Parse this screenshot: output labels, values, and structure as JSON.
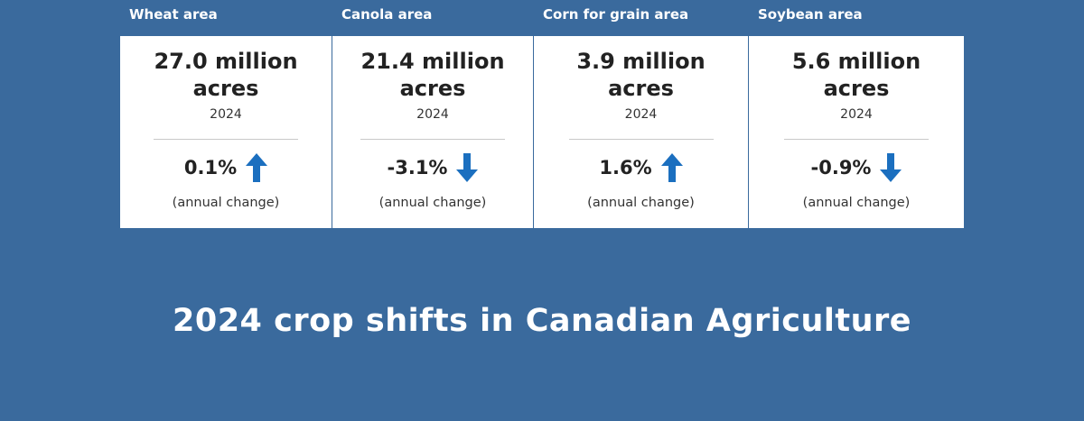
{
  "cards": [
    {
      "header": "Wheat area",
      "value": "27.0 million acres",
      "year": "2024",
      "change": "0.1%",
      "change_label": "(annual change)"
    },
    {
      "header": "Canola area",
      "value": "21.4 million acres",
      "year": "2024",
      "change": "-3.1%",
      "change_label": "(annual change)"
    },
    {
      "header": "Corn for grain area",
      "value": "3.9 million acres",
      "year": "2024",
      "change": "1.6%",
      "change_label": "(annual change)"
    },
    {
      "header": "Soybean area",
      "value": "5.6 million acres",
      "year": "2024",
      "change": "-0.9%",
      "change_label": "(annual change)"
    }
  ],
  "title": "2024 crop shifts in Canadian Agriculture"
}
